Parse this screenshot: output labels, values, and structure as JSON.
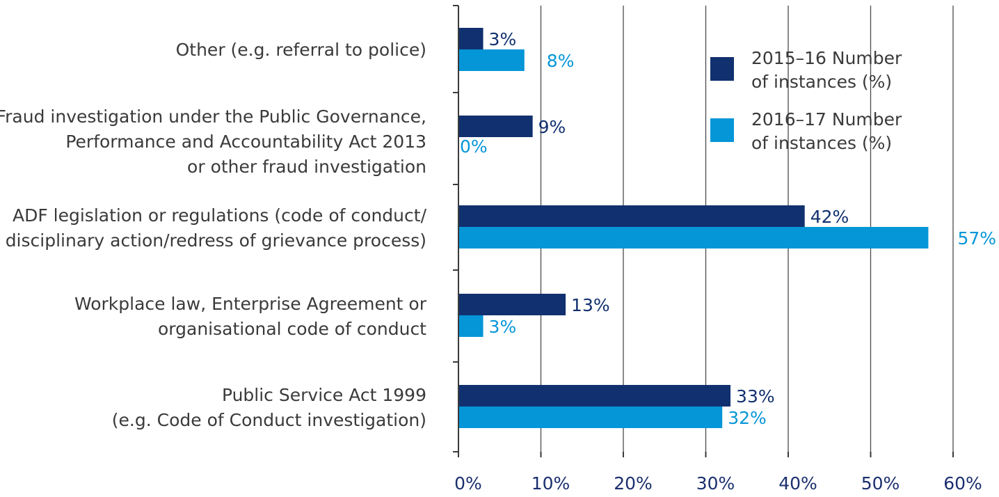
{
  "chart_data": {
    "type": "bar",
    "orientation": "horizontal",
    "title": "",
    "xlabel": "",
    "ylabel": "",
    "xlim": [
      0,
      60
    ],
    "x_ticks": [
      0,
      10,
      20,
      30,
      40,
      50,
      60
    ],
    "x_tick_labels": [
      "0%",
      "10%",
      "20%",
      "30%",
      "40%",
      "50%",
      "60%"
    ],
    "grid": "vertical",
    "legend_position": "top-right",
    "categories": [
      [
        "Other (e.g. referral to police)"
      ],
      [
        "Fraud investigation under the Public Governance,",
        "Performance and Accountability Act 2013",
        "or other fraud investigation"
      ],
      [
        "ADF legislation or regulations (code of conduct/",
        "disciplinary action/redress of grievance process)"
      ],
      [
        "Workplace law, Enterprise Agreement or",
        "organisational code of conduct"
      ],
      [
        "Public Service Act 1999",
        "(e.g. Code of Conduct investigation)"
      ]
    ],
    "series": [
      {
        "name": [
          "2015–16 Number",
          "of instances (%)"
        ],
        "color": "#11306f",
        "values": [
          3,
          9,
          42,
          13,
          33
        ],
        "labels": [
          "3%",
          "9%",
          "42%",
          "13%",
          "33%"
        ]
      },
      {
        "name": [
          "2016–17 Number",
          "of instances (%)"
        ],
        "color": "#0596d8",
        "values": [
          8,
          0,
          57,
          3,
          32
        ],
        "labels": [
          "8%",
          "0%",
          "57%",
          "3%",
          "32%"
        ]
      }
    ]
  }
}
